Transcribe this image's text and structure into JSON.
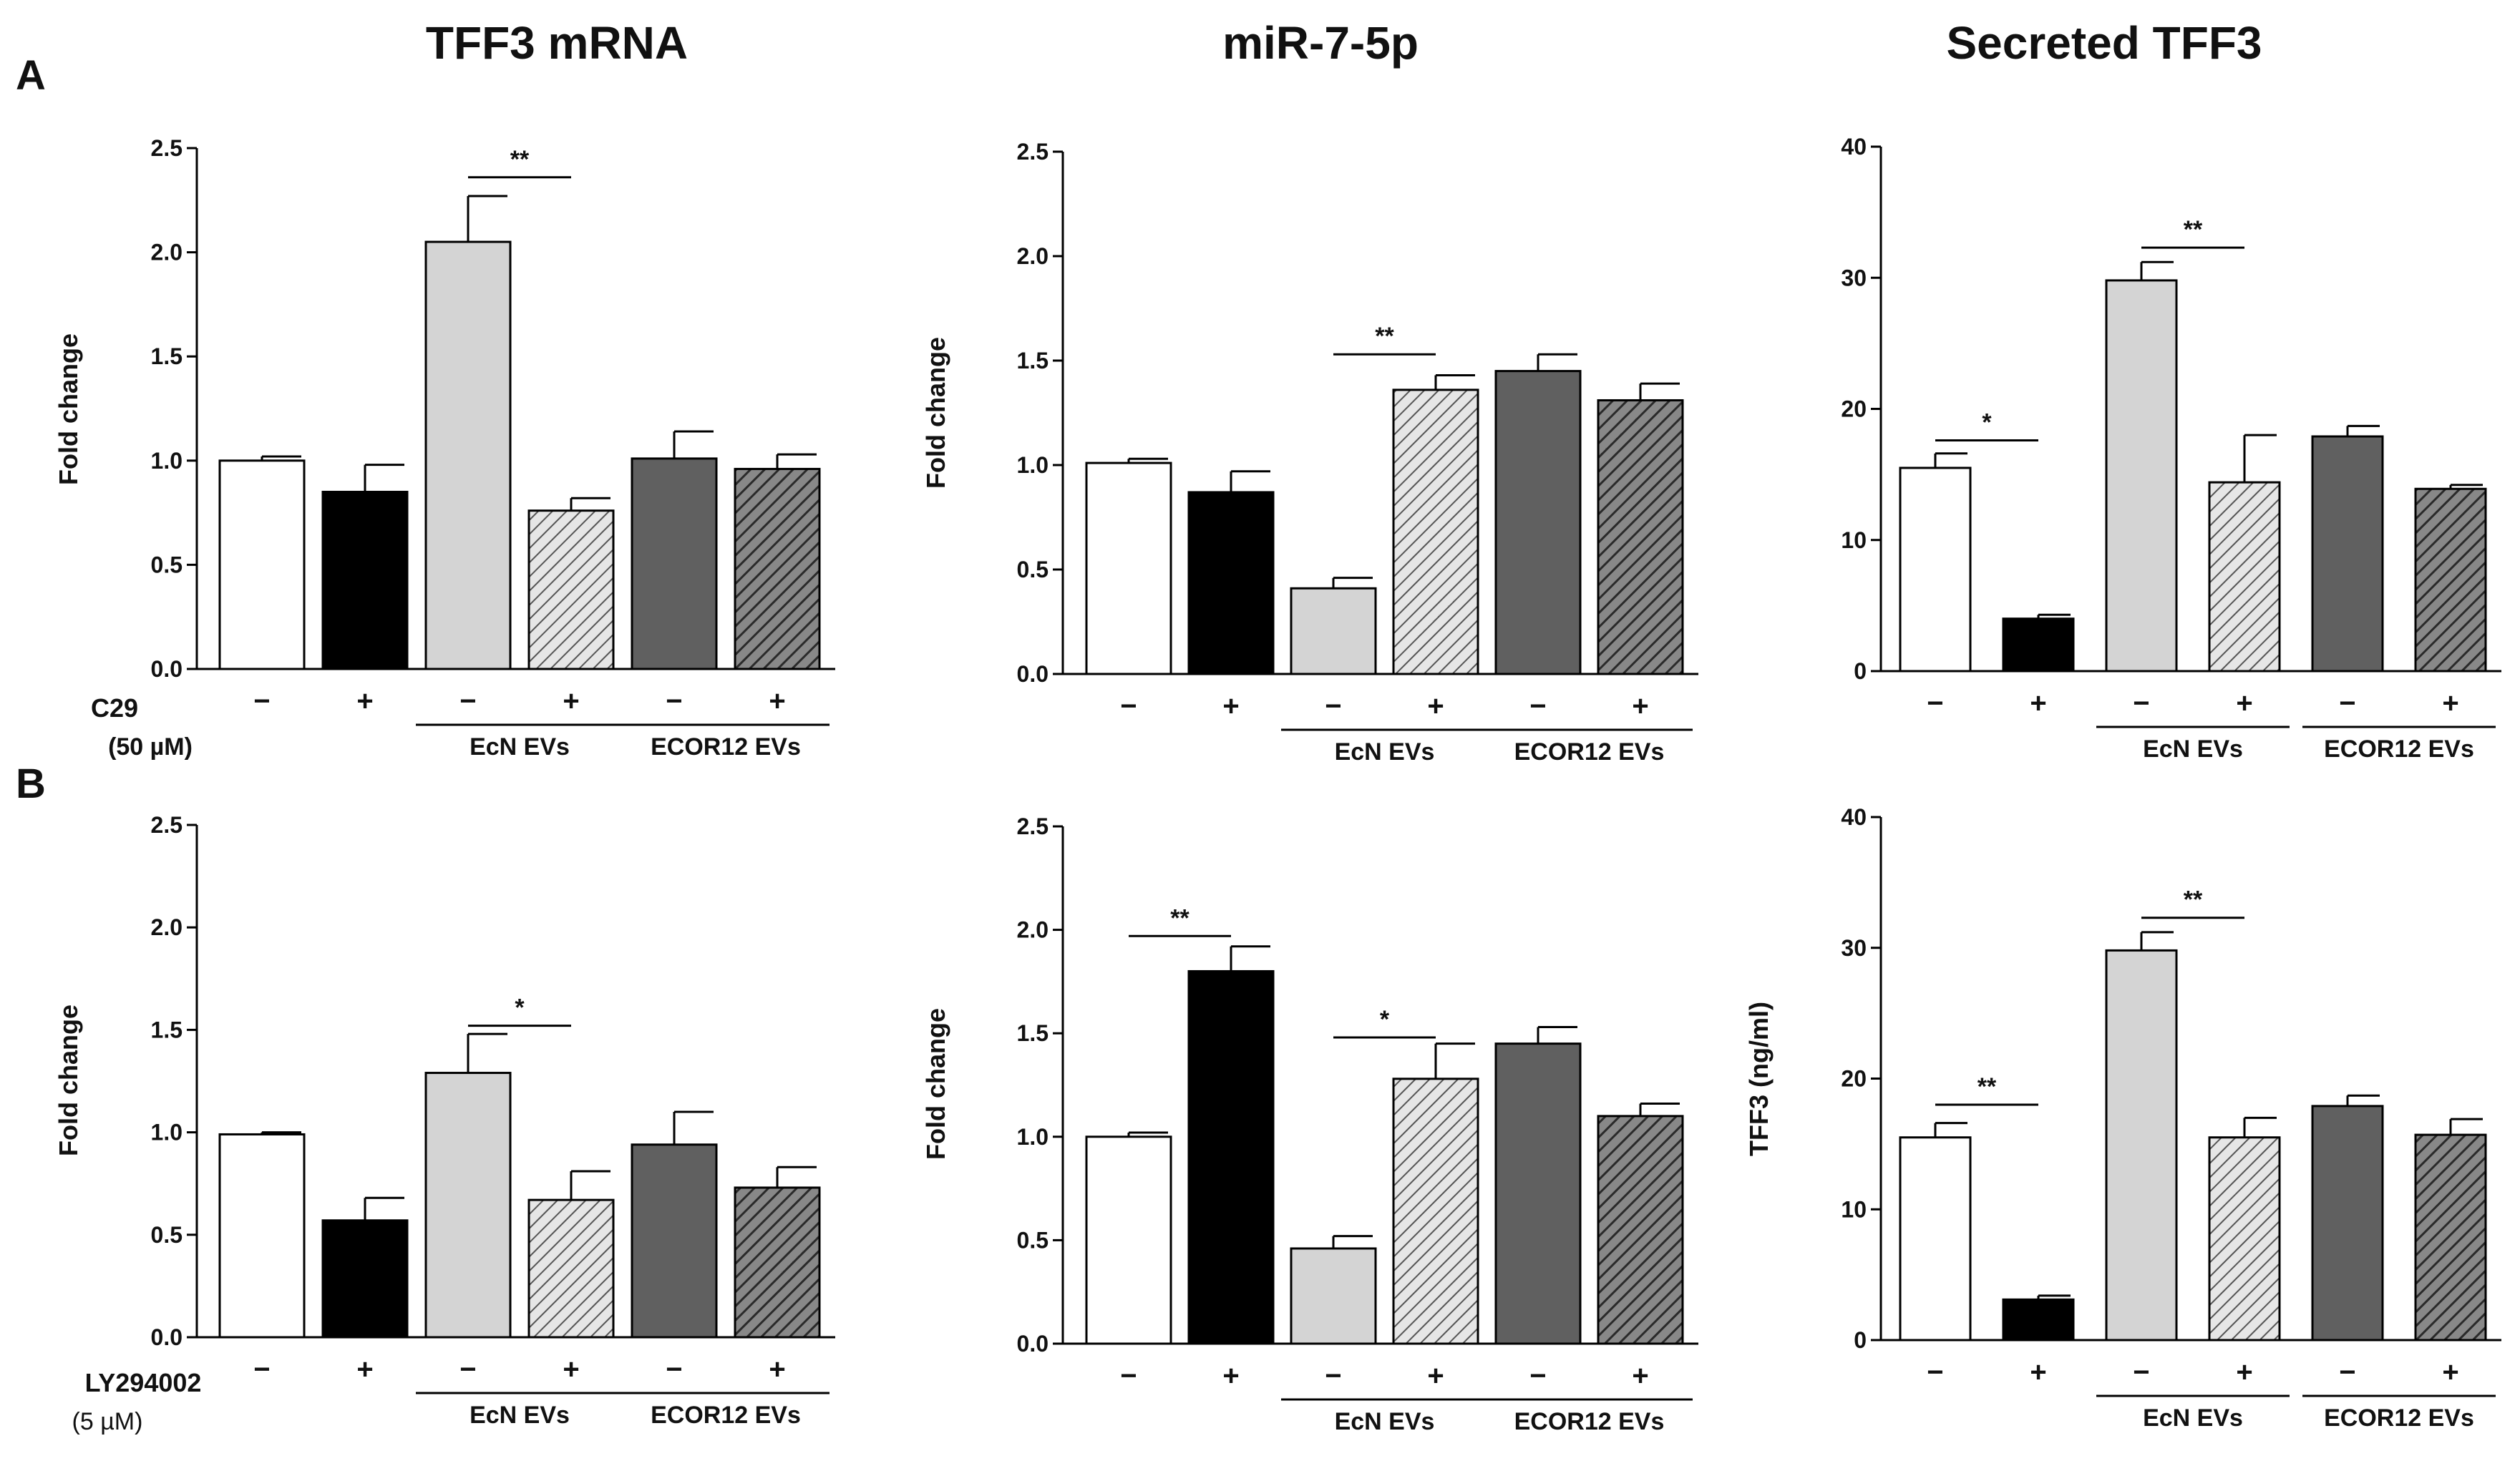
{
  "figure": {
    "column_titles": [
      "TFF3 mRNA",
      "miR-7-5p",
      "Secreted TFF3"
    ],
    "row_labels": [
      "A",
      "B"
    ],
    "row_controls": [
      {
        "name": "C29",
        "unit": "(50 µM)"
      },
      {
        "name": "LY294002",
        "unit": "(5 µM)"
      }
    ],
    "colors": {
      "white": "#ffffff",
      "black": "#000000",
      "light": "#d4d4d4",
      "light_hatch": "#d9d9d9",
      "dark": "#606060",
      "dark_hatch": "#505050",
      "axis": "#000000"
    }
  },
  "chart_data": [
    {
      "type": "bar",
      "row": "A",
      "title": "TFF3 mRNA",
      "ylabel": "Fold change",
      "ylim": [
        0,
        2.5
      ],
      "yticks": [
        "0.0",
        "0.5",
        "1.0",
        "1.5",
        "2.0",
        "2.5"
      ],
      "treatment_labels": [
        "−",
        "+",
        "−",
        "+",
        "−",
        "+"
      ],
      "groups": [
        "EcN EVs",
        "ECOR12 EVs"
      ],
      "values": [
        1.0,
        0.85,
        2.05,
        0.76,
        1.01,
        0.96
      ],
      "errors": [
        0.02,
        0.13,
        0.22,
        0.06,
        0.13,
        0.07
      ],
      "significance": [
        {
          "from": 2,
          "to": 3,
          "label": "**",
          "y": 2.36
        }
      ]
    },
    {
      "type": "bar",
      "row": "A",
      "title": "miR-7-5p",
      "ylabel": "Fold change",
      "ylim": [
        0,
        2.5
      ],
      "yticks": [
        "0.0",
        "0.5",
        "1.0",
        "1.5",
        "2.0",
        "2.5"
      ],
      "treatment_labels": [
        "−",
        "+",
        "−",
        "+",
        "−",
        "+"
      ],
      "groups": [
        "EcN EVs",
        "ECOR12 EVs"
      ],
      "values": [
        1.01,
        0.87,
        0.41,
        1.36,
        1.45,
        1.31
      ],
      "errors": [
        0.02,
        0.1,
        0.05,
        0.07,
        0.08,
        0.08
      ],
      "significance": [
        {
          "from": 2,
          "to": 3,
          "label": "**",
          "y": 1.53
        }
      ]
    },
    {
      "type": "bar",
      "row": "A",
      "title": "Secreted TFF3",
      "ylabel": "",
      "ylim": [
        0,
        40
      ],
      "yticks": [
        "0",
        "10",
        "20",
        "30",
        "40"
      ],
      "treatment_labels": [
        "−",
        "+",
        "−",
        "+",
        "−",
        "+"
      ],
      "groups": [
        "EcN EVs",
        "ECOR12 EVs"
      ],
      "values": [
        15.5,
        4.0,
        29.8,
        14.4,
        17.9,
        13.9
      ],
      "errors": [
        1.1,
        0.3,
        1.4,
        3.6,
        0.8,
        0.3
      ],
      "significance": [
        {
          "from": 0,
          "to": 1,
          "label": "*",
          "y": 17.6
        },
        {
          "from": 2,
          "to": 3,
          "label": "**",
          "y": 32.3
        }
      ]
    },
    {
      "type": "bar",
      "row": "B",
      "title": "TFF3 mRNA",
      "ylabel": "Fold change",
      "ylim": [
        0,
        2.5
      ],
      "yticks": [
        "0.0",
        "0.5",
        "1.0",
        "1.5",
        "2.0",
        "2.5"
      ],
      "treatment_labels": [
        "−",
        "+",
        "−",
        "+",
        "−",
        "+"
      ],
      "groups": [
        "EcN EVs",
        "ECOR12 EVs"
      ],
      "values": [
        0.99,
        0.57,
        1.29,
        0.67,
        0.94,
        0.73
      ],
      "errors": [
        0.01,
        0.11,
        0.19,
        0.14,
        0.16,
        0.1
      ],
      "significance": [
        {
          "from": 2,
          "to": 3,
          "label": "*",
          "y": 1.52
        }
      ]
    },
    {
      "type": "bar",
      "row": "B",
      "title": "miR-7-5p",
      "ylabel": "Fold change",
      "ylim": [
        0,
        2.5
      ],
      "yticks": [
        "0.0",
        "0.5",
        "1.0",
        "1.5",
        "2.0",
        "2.5"
      ],
      "treatment_labels": [
        "−",
        "+",
        "−",
        "+",
        "−",
        "+"
      ],
      "groups": [
        "EcN EVs",
        "ECOR12 EVs"
      ],
      "values": [
        1.0,
        1.8,
        0.46,
        1.28,
        1.45,
        1.1
      ],
      "errors": [
        0.02,
        0.12,
        0.06,
        0.17,
        0.08,
        0.06
      ],
      "significance": [
        {
          "from": 0,
          "to": 1,
          "label": "**",
          "y": 1.97
        },
        {
          "from": 2,
          "to": 3,
          "label": "*",
          "y": 1.48
        }
      ]
    },
    {
      "type": "bar",
      "row": "B",
      "title": "Secreted TFF3",
      "ylabel": "TFF3 (ng/ml)",
      "ylim": [
        0,
        40
      ],
      "yticks": [
        "0",
        "10",
        "20",
        "30",
        "40"
      ],
      "treatment_labels": [
        "−",
        "+",
        "−",
        "+",
        "−",
        "+"
      ],
      "groups": [
        "EcN EVs",
        "ECOR12 EVs"
      ],
      "values": [
        15.5,
        3.1,
        29.8,
        15.5,
        17.9,
        15.7
      ],
      "errors": [
        1.1,
        0.3,
        1.4,
        1.5,
        0.8,
        1.2
      ],
      "significance": [
        {
          "from": 0,
          "to": 1,
          "label": "**",
          "y": 18.0
        },
        {
          "from": 2,
          "to": 3,
          "label": "**",
          "y": 32.3
        }
      ]
    }
  ]
}
